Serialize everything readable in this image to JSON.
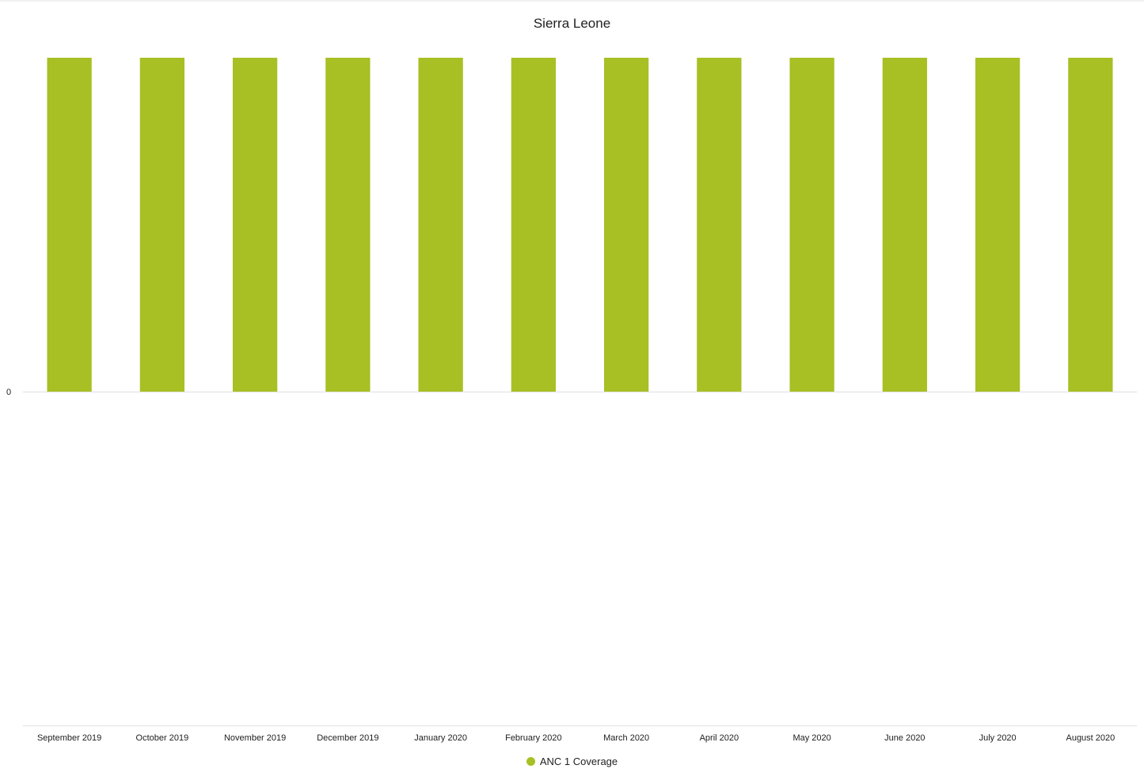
{
  "chart_data": {
    "type": "bar",
    "title": "Sierra Leone",
    "categories": [
      "September 2019",
      "October 2019",
      "November 2019",
      "December 2019",
      "January 2020",
      "February 2020",
      "March 2020",
      "April 2020",
      "May 2020",
      "June 2020",
      "July 2020",
      "August 2020"
    ],
    "series": [
      {
        "name": "ANC 1 Coverage",
        "color": "#a8c023",
        "values": [
          1,
          1,
          1,
          1,
          1,
          1,
          1,
          1,
          1,
          1,
          1,
          1
        ]
      }
    ],
    "y_ticks": [
      "0"
    ],
    "ylim": [
      -1,
      1
    ],
    "xlabel": "",
    "ylabel": "",
    "grid": false,
    "legend_position": "bottom-center"
  }
}
